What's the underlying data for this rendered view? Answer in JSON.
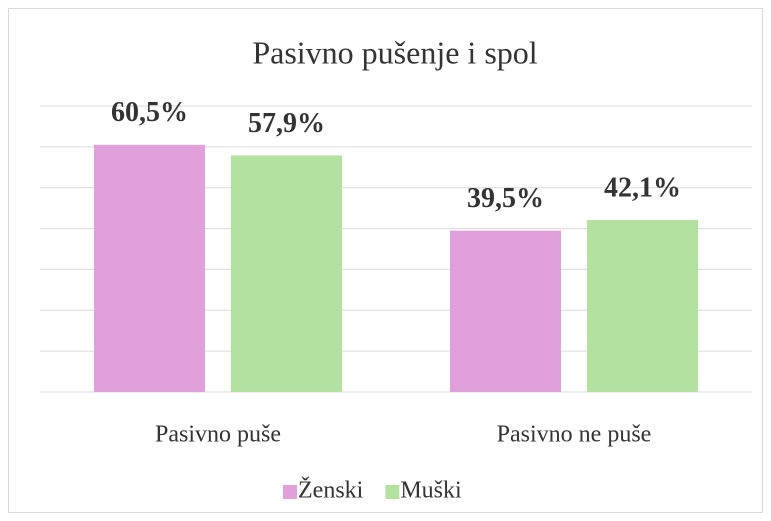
{
  "chart_data": {
    "type": "bar",
    "title": "Pasivno pušenje i spol",
    "categories": [
      "Pasivno puše",
      "Pasivno ne puše"
    ],
    "series": [
      {
        "name": "Ženski",
        "color": "#e0a0dc",
        "values": [
          60.5,
          39.5
        ],
        "value_labels": [
          "60,5%",
          "39,5%"
        ]
      },
      {
        "name": "Muški",
        "color": "#b3e2a0",
        "values": [
          57.9,
          42.1
        ],
        "value_labels": [
          "57,9%",
          "42,1%"
        ]
      }
    ],
    "ylim": [
      0,
      70
    ],
    "yticks": [
      0,
      10,
      20,
      30,
      40,
      50,
      60,
      70
    ],
    "grid": true,
    "legend": "bottom"
  }
}
